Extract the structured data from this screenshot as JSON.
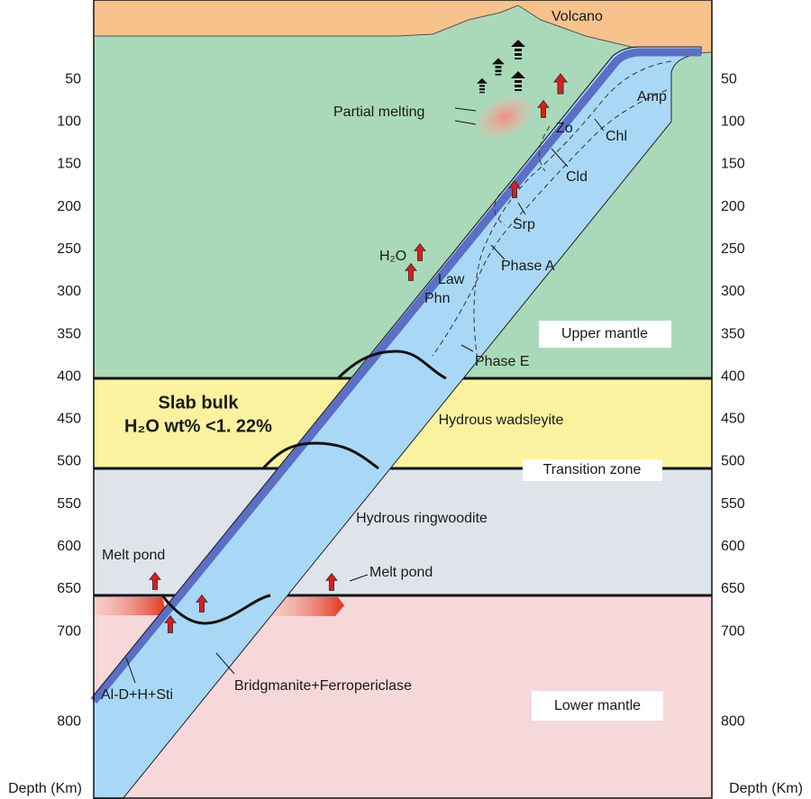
{
  "title": "Volcano",
  "depth_axis": {
    "label": "Depth (Km)",
    "ticks": [
      50,
      100,
      150,
      200,
      250,
      300,
      350,
      400,
      450,
      500,
      550,
      600,
      650,
      700,
      800
    ]
  },
  "labels": {
    "partial_melting": "Partial melting",
    "zo": "Zo",
    "chl": "Chl",
    "amp": "Amp",
    "cld": "Cld",
    "srp": "Srp",
    "h2o": "H₂O",
    "law": "Law",
    "phn": "Phn",
    "phase_a": "Phase A",
    "upper_mantle": "Upper mantle",
    "phase_e": "Phase E",
    "slab_bulk": "Slab bulk",
    "slab_h2o": "H₂O wt% <1. 22%",
    "hydrous_wadsleyite": "Hydrous wadsleyite",
    "transition_zone": "Transition zone",
    "hydrous_ringwoodite": "Hydrous ringwoodite",
    "melt_pond_left": "Melt pond",
    "melt_pond_right": "Melt pond",
    "al_d": "Al-D+H+Sti",
    "bridgmanite": "Bridgmanite+Ferropericlase",
    "lower_mantle": "Lower mantle"
  }
}
